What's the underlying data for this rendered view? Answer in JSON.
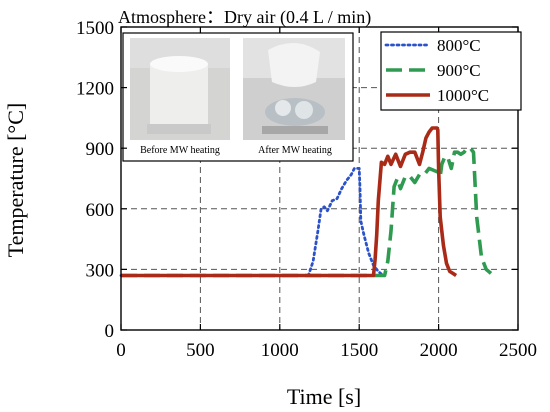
{
  "chart_data": {
    "type": "line",
    "title": "",
    "subtitle": "Atmosphere：Dry air (0.4 L / min)",
    "xlabel": "Time [s]",
    "ylabel": "Temperature [°C]",
    "xlim": [
      0,
      2500
    ],
    "ylim": [
      0,
      1500
    ],
    "xticks": [
      0,
      500,
      1000,
      1500,
      2000,
      2500
    ],
    "yticks": [
      0,
      300,
      600,
      900,
      1200,
      1500
    ],
    "grid": "dashed",
    "legend_position": "top-right",
    "series": [
      {
        "name": "800°C",
        "color": "#2b52c9",
        "style": "dotted",
        "x": [
          0,
          1180,
          1210,
          1240,
          1260,
          1280,
          1300,
          1330,
          1360,
          1390,
          1420,
          1450,
          1470,
          1490,
          1500,
          1505,
          1510,
          1530,
          1560,
          1590,
          1620,
          1650
        ],
        "y": [
          270,
          270,
          340,
          490,
          600,
          610,
          590,
          640,
          650,
          700,
          740,
          770,
          800,
          800,
          800,
          700,
          540,
          470,
          380,
          320,
          290,
          270
        ]
      },
      {
        "name": "900°C",
        "color": "#2e9b50",
        "style": "dashed",
        "x": [
          0,
          1660,
          1680,
          1700,
          1720,
          1740,
          1760,
          1790,
          1820,
          1850,
          1880,
          1910,
          1940,
          1970,
          2000,
          2010,
          2020,
          2040,
          2060,
          2080,
          2100,
          2120,
          2140,
          2160,
          2180,
          2200,
          2210,
          2220,
          2240,
          2270,
          2300,
          2330
        ],
        "y": [
          270,
          270,
          340,
          490,
          710,
          750,
          700,
          760,
          760,
          730,
          770,
          770,
          800,
          790,
          780,
          760,
          820,
          860,
          850,
          800,
          880,
          880,
          870,
          880,
          900,
          900,
          890,
          880,
          560,
          360,
          300,
          280
        ]
      },
      {
        "name": "1000°C",
        "color": "#a92a17",
        "style": "solid",
        "x": [
          0,
          1590,
          1600,
          1610,
          1620,
          1640,
          1660,
          1680,
          1700,
          1730,
          1760,
          1790,
          1820,
          1850,
          1880,
          1900,
          1920,
          1940,
          1960,
          1980,
          1990,
          1995,
          2000,
          2010,
          2030,
          2050,
          2070,
          2090,
          2110
        ],
        "y": [
          270,
          270,
          350,
          470,
          640,
          830,
          820,
          860,
          820,
          870,
          810,
          870,
          880,
          880,
          820,
          880,
          950,
          980,
          1000,
          1000,
          1000,
          990,
          800,
          560,
          420,
          330,
          290,
          280,
          270
        ]
      }
    ]
  },
  "inset": {
    "left_caption": "Before MW heating",
    "right_caption": "After MW heating"
  }
}
